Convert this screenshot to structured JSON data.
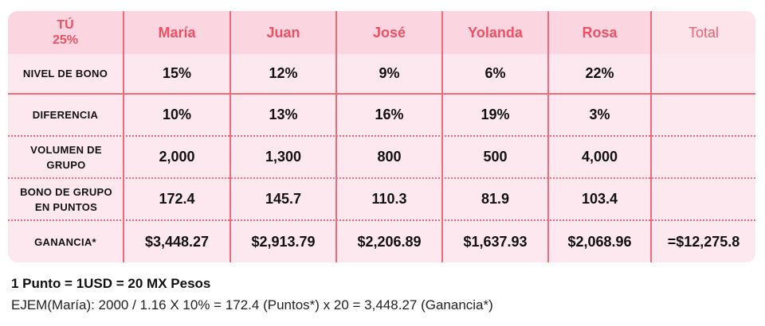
{
  "header": {
    "you_label": "TÚ",
    "you_pct": "25%",
    "names": [
      "María",
      "Juan",
      "José",
      "Yolanda",
      "Rosa"
    ],
    "total_label": "Total"
  },
  "rows": [
    {
      "label": "NIVEL DE BONO",
      "values": [
        "15%",
        "12%",
        "9%",
        "6%",
        "22%"
      ],
      "total": ""
    },
    {
      "label": "DIFERENCIA",
      "values": [
        "10%",
        "13%",
        "16%",
        "19%",
        "3%"
      ],
      "total": ""
    },
    {
      "label": "VOLUMEN DE GRUPO",
      "values": [
        "2,000",
        "1,300",
        "800",
        "500",
        "4,000"
      ],
      "total": ""
    },
    {
      "label": "BONO DE GRUPO EN PUNTOS",
      "values": [
        "172.4",
        "145.7",
        "110.3",
        "81.9",
        "103.4"
      ],
      "total": ""
    },
    {
      "label": "GANANCIA*",
      "values": [
        "$3,448.27",
        "$2,913.79",
        "$2,206.89",
        "$1,637.93",
        "$2,068.96"
      ],
      "total": "=$12,275.8"
    }
  ],
  "notes": {
    "conversion": "1 Punto = 1USD = 20 MX Pesos",
    "example": "EJEM(María): 2000 / 1.16 X 10% = 172.4 (Puntos*) x 20 = 3,448.27 (Ganancia*)"
  }
}
